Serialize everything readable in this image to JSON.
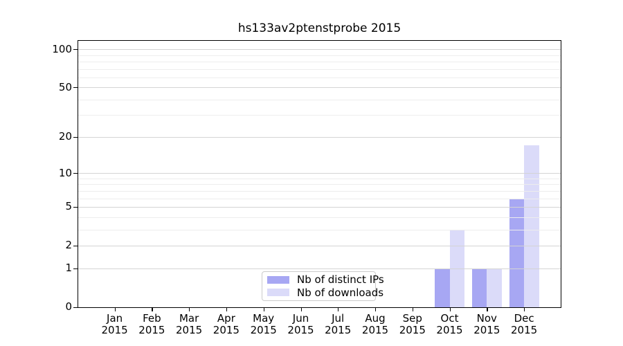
{
  "title": "hs133av2ptenstprobe 2015",
  "chart_data": {
    "type": "bar",
    "title": "hs133av2ptenstprobe 2015",
    "yscale": "log1p",
    "grid": "horizontal",
    "legend_position": "lower-center-inside",
    "categories": [
      "Jan 2015",
      "Feb 2015",
      "Mar 2015",
      "Apr 2015",
      "May 2015",
      "Jun 2015",
      "Jul 2015",
      "Aug 2015",
      "Sep 2015",
      "Oct 2015",
      "Nov 2015",
      "Dec 2015"
    ],
    "x_tick_month_line": [
      "Jan",
      "Feb",
      "Mar",
      "Apr",
      "May",
      "Jun",
      "Jul",
      "Aug",
      "Sep",
      "Oct",
      "Nov",
      "Dec"
    ],
    "x_tick_year_line": "2015",
    "series": [
      {
        "name": "Nb of distinct IPs",
        "color": "#a7a7f3",
        "values": [
          0,
          0,
          0,
          0,
          0,
          0,
          0,
          0,
          0,
          1,
          1,
          6
        ]
      },
      {
        "name": "Nb of downloads",
        "color": "#dbdbf9",
        "values": [
          0,
          0,
          0,
          0,
          0,
          0,
          0,
          0,
          0,
          3,
          1,
          17
        ]
      }
    ],
    "y_major_ticks": [
      0,
      1,
      2,
      5,
      10,
      20,
      50,
      100
    ],
    "y_minor_ticks": [
      3,
      4,
      6,
      7,
      8,
      9,
      30,
      40,
      60,
      70,
      80,
      90
    ],
    "ylim": [
      0,
      116
    ]
  },
  "colors": {
    "major_grid": "#d4d4d4",
    "minor_grid": "#ededed",
    "axis": "#000000",
    "legend_border": "#cbcbcb",
    "background": "#ffffff",
    "text": "#000000"
  }
}
